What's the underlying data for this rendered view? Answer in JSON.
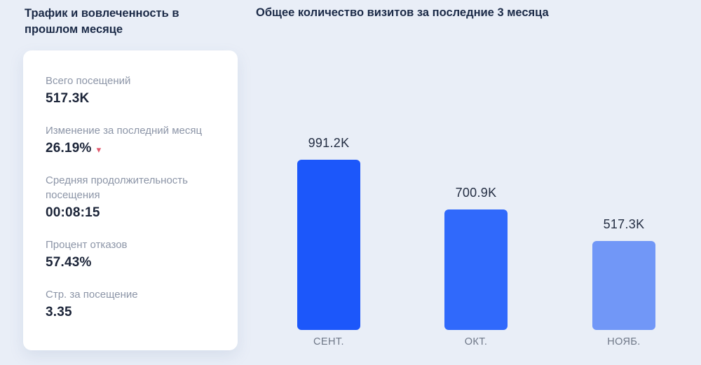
{
  "page": {
    "background_color": "#e9eef7"
  },
  "left_panel": {
    "heading": "Трафик и вовлеченность в прошлом месяце",
    "stats_card": {
      "stats": [
        {
          "label": "Всего посещений",
          "value": "517.3K"
        },
        {
          "label": "Изменение за последний месяц",
          "value": "26.19%",
          "trend": "down",
          "trend_icon": "▾",
          "trend_color": "#e0586c"
        },
        {
          "label": "Средняя продолжительность посещения",
          "value": "00:08:15"
        },
        {
          "label": "Процент отказов",
          "value": "57.43%"
        },
        {
          "label": "Стр. за посещение",
          "value": "3.35"
        }
      ]
    }
  },
  "chart_data": {
    "type": "bar",
    "title": "Общее количество визитов за последние 3 месяца",
    "categories": [
      "СЕНТ.",
      "ОКТ.",
      "НОЯБ."
    ],
    "values": [
      991200,
      700900,
      517300
    ],
    "value_labels": [
      "991.2K",
      "700.9K",
      "517.3K"
    ],
    "bar_colors": [
      "#1c57fa",
      "#3069fb",
      "#7197f7"
    ],
    "xlabel": "",
    "ylabel": "",
    "ylim": [
      0,
      1000000
    ],
    "grid": false,
    "legend": false
  }
}
